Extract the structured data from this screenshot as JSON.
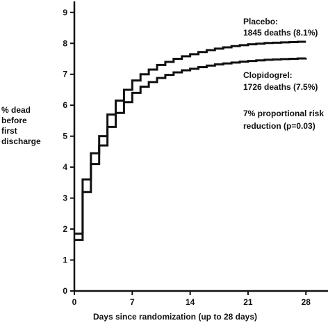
{
  "chart_data": {
    "type": "line",
    "step": true,
    "title": "",
    "xlabel": "Days since randomization (up to 28 days)",
    "ylabel": [
      "% dead",
      "before",
      "first",
      "discharge"
    ],
    "xlim": [
      0,
      30.5
    ],
    "ylim": [
      0,
      9.4
    ],
    "xticks": [
      0,
      7,
      14,
      21,
      28
    ],
    "yticks": [
      0,
      1,
      2,
      3,
      4,
      5,
      6,
      7,
      8,
      9
    ],
    "grid": false,
    "series": [
      {
        "name": "Placebo",
        "color": "#111111",
        "x": [
          0,
          1,
          2,
          3,
          4,
          5,
          6,
          7,
          8,
          9,
          10,
          11,
          12,
          13,
          14,
          15,
          16,
          17,
          18,
          19,
          20,
          21,
          22,
          23,
          24,
          25,
          26,
          27,
          28
        ],
        "y": [
          1.85,
          3.6,
          4.45,
          5.0,
          5.7,
          6.15,
          6.5,
          6.8,
          7.0,
          7.15,
          7.3,
          7.4,
          7.5,
          7.58,
          7.65,
          7.72,
          7.78,
          7.83,
          7.87,
          7.91,
          7.94,
          7.97,
          7.99,
          8.01,
          8.02,
          8.03,
          8.04,
          8.05,
          8.05
        ]
      },
      {
        "name": "Clopidogrel",
        "color": "#111111",
        "x": [
          0,
          1,
          2,
          3,
          4,
          5,
          6,
          7,
          8,
          9,
          10,
          11,
          12,
          13,
          14,
          15,
          16,
          17,
          18,
          19,
          20,
          21,
          22,
          23,
          24,
          25,
          26,
          27,
          28
        ],
        "y": [
          1.65,
          3.2,
          4.1,
          4.7,
          5.3,
          5.75,
          6.1,
          6.4,
          6.6,
          6.75,
          6.88,
          6.98,
          7.06,
          7.13,
          7.18,
          7.23,
          7.28,
          7.32,
          7.35,
          7.38,
          7.41,
          7.43,
          7.45,
          7.47,
          7.48,
          7.49,
          7.5,
          7.51,
          7.52
        ]
      }
    ],
    "annotations": [
      {
        "id": "placebo",
        "lines": [
          "Placebo:",
          "1845 deaths (8.1%)"
        ]
      },
      {
        "id": "clopidogrel",
        "lines": [
          "Clopidogrel:",
          "1726 deaths (7.5%)"
        ]
      },
      {
        "id": "risk",
        "lines": [
          "7% proportional risk",
          "reduction (p=0.03)"
        ]
      }
    ]
  }
}
